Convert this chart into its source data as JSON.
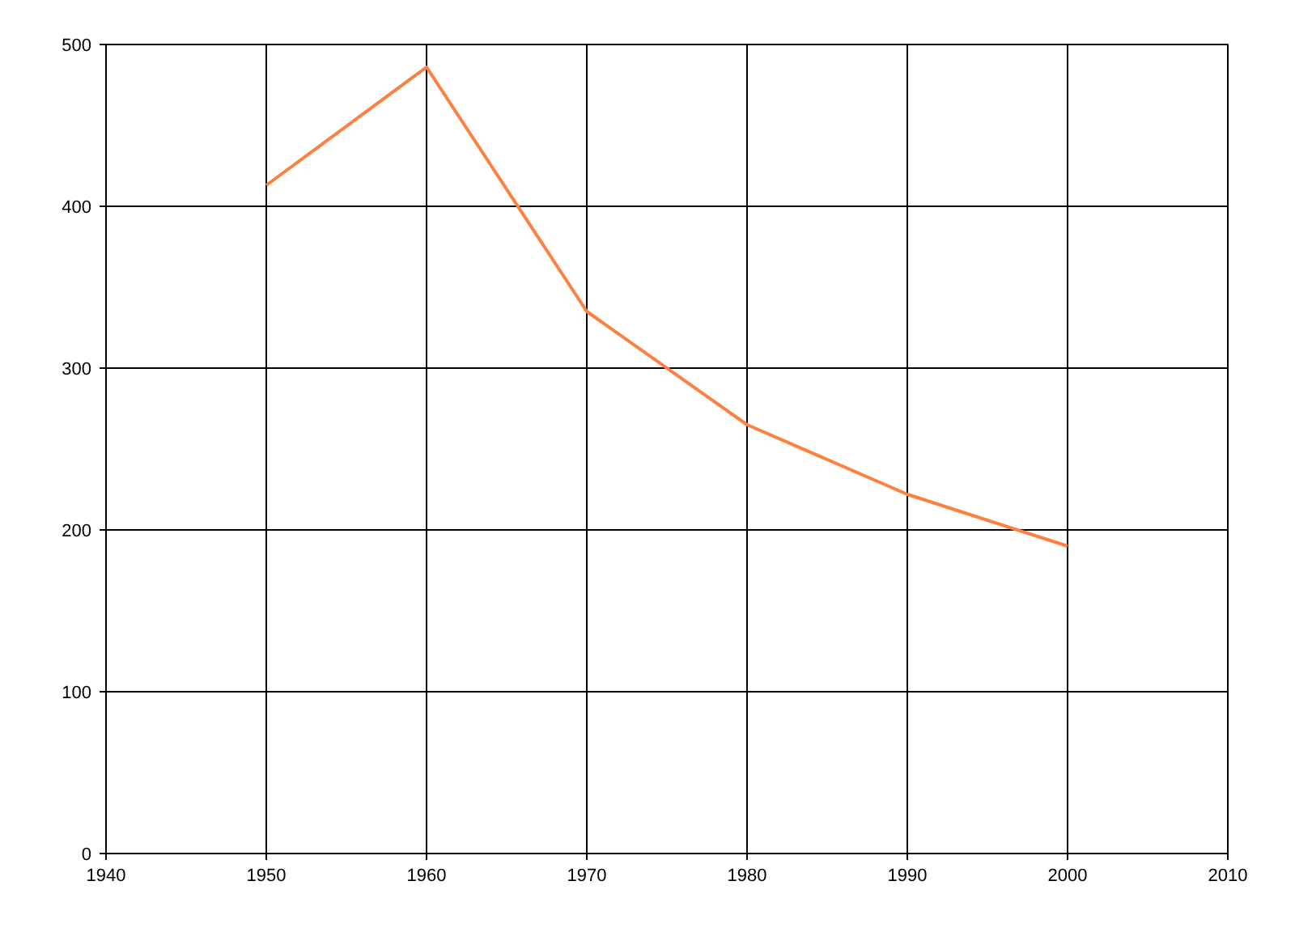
{
  "chart_data": {
    "type": "line",
    "x": [
      1950,
      1960,
      1970,
      1980,
      1990,
      2000
    ],
    "series": [
      {
        "color": "#ff7f3f",
        "values": [
          413,
          486,
          335,
          265,
          222,
          190
        ]
      }
    ],
    "xlim": [
      1940,
      2010
    ],
    "xticks": [
      1940,
      1950,
      1960,
      1970,
      1980,
      1990,
      2000,
      2010
    ],
    "ylim": [
      0,
      500
    ],
    "yticks": [
      0,
      100,
      200,
      300,
      400,
      500
    ],
    "grid": true,
    "marker": "none",
    "line_style": "solid"
  }
}
